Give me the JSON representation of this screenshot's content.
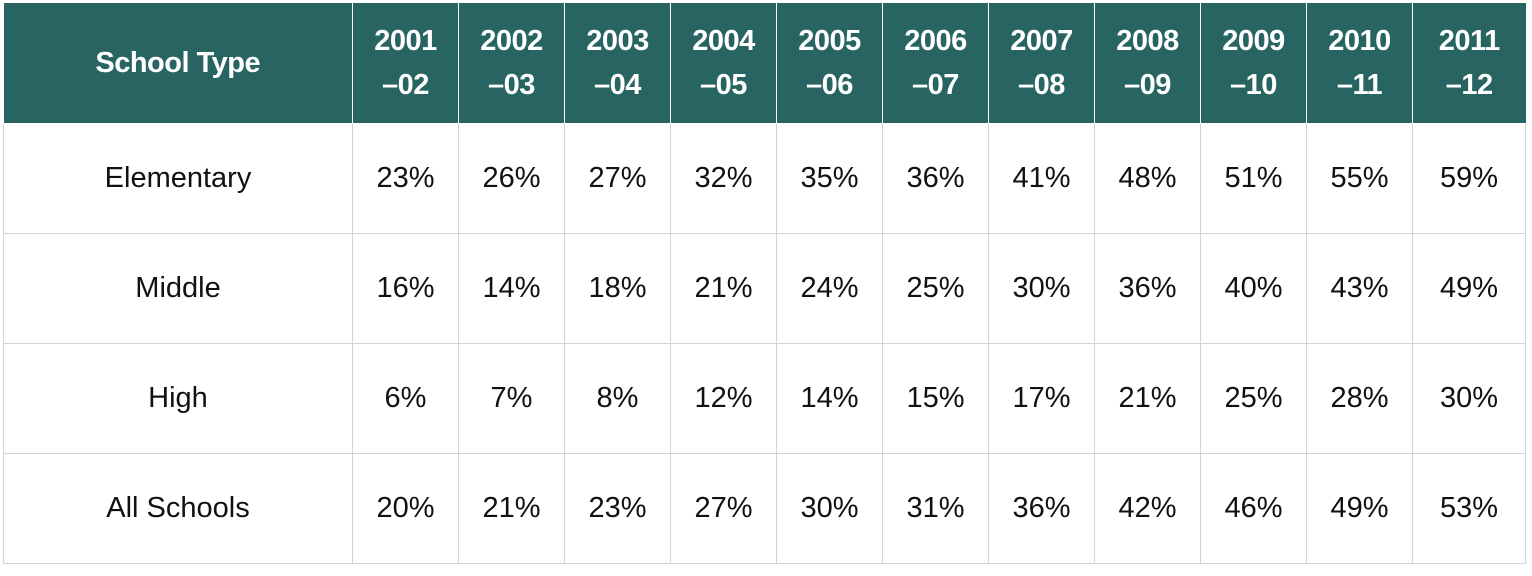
{
  "chart_data": {
    "type": "table",
    "columns": [
      "School Type",
      "2001–02",
      "2002–03",
      "2003–04",
      "2004–05",
      "2005–06",
      "2006–07",
      "2007–08",
      "2008–09",
      "2009–10",
      "2010–11",
      "2011–12"
    ],
    "header": {
      "first": "School Type",
      "years": [
        {
          "top": "2001",
          "bottom": "–02"
        },
        {
          "top": "2002",
          "bottom": "–03"
        },
        {
          "top": "2003",
          "bottom": "–04"
        },
        {
          "top": "2004",
          "bottom": "–05"
        },
        {
          "top": "2005",
          "bottom": "–06"
        },
        {
          "top": "2006",
          "bottom": "–07"
        },
        {
          "top": "2007",
          "bottom": "–08"
        },
        {
          "top": "2008",
          "bottom": "–09"
        },
        {
          "top": "2009",
          "bottom": "–10"
        },
        {
          "top": "2010",
          "bottom": "–11"
        },
        {
          "top": "2011",
          "bottom": "–12"
        }
      ]
    },
    "rows": [
      {
        "label": "Elementary",
        "values": [
          "23%",
          "26%",
          "27%",
          "32%",
          "35%",
          "36%",
          "41%",
          "48%",
          "51%",
          "55%",
          "59%"
        ]
      },
      {
        "label": "Middle",
        "values": [
          "16%",
          "14%",
          "18%",
          "21%",
          "24%",
          "25%",
          "30%",
          "36%",
          "40%",
          "43%",
          "49%"
        ]
      },
      {
        "label": "High",
        "values": [
          "6%",
          "7%",
          "8%",
          "12%",
          "14%",
          "15%",
          "17%",
          "21%",
          "25%",
          "28%",
          "30%"
        ]
      },
      {
        "label": "All Schools",
        "values": [
          "20%",
          "21%",
          "23%",
          "27%",
          "30%",
          "31%",
          "36%",
          "42%",
          "46%",
          "49%",
          "53%"
        ]
      }
    ]
  },
  "colors": {
    "header_bg": "#276462",
    "header_text": "#ffffff",
    "grid": "#d4d4d4"
  }
}
